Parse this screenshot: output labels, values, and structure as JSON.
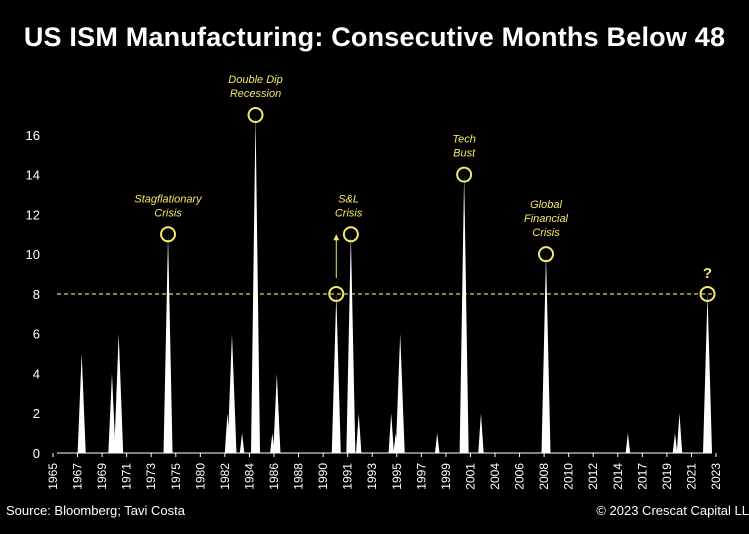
{
  "page": {
    "title": "US ISM Manufacturing: Consecutive Months Below 48",
    "source": "Source: Bloomberg; Tavi Costa",
    "copyright": "© 2023 Crescat Capital LL"
  },
  "colors": {
    "background": "#000000",
    "area": "#ffffff",
    "highlight": "#f2e86b"
  },
  "chart_data": {
    "type": "area",
    "title": "US ISM Manufacturing: Consecutive Months Below 48",
    "xlabel": "",
    "ylabel": "",
    "ylim": [
      0,
      17
    ],
    "xlim": [
      1965,
      2023.4
    ],
    "grid": false,
    "y_ticks": [
      0,
      2,
      4,
      6,
      8,
      10,
      12,
      14,
      16
    ],
    "x_tick_labels": [
      "1965",
      "1967",
      "1969",
      "1971",
      "1973",
      "1975",
      "1980",
      "1982",
      "1984",
      "1986",
      "1988",
      "1990",
      "1991",
      "1993",
      "1995",
      "1997",
      "1999",
      "2001",
      "2004",
      "2006",
      "2008",
      "2010",
      "2012",
      "2014",
      "2017",
      "2019",
      "2021",
      "2023"
    ],
    "reference_line": {
      "y": 8,
      "style": "dashed"
    },
    "spikes": [
      {
        "x": 1967.2,
        "value": 5
      },
      {
        "x": 1969.9,
        "value": 4
      },
      {
        "x": 1970.5,
        "value": 6
      },
      {
        "x": 1974.9,
        "value": 11
      },
      {
        "x": 1980.2,
        "value": 2
      },
      {
        "x": 1980.6,
        "value": 6
      },
      {
        "x": 1981.5,
        "value": 1
      },
      {
        "x": 1982.7,
        "value": 17
      },
      {
        "x": 1984.2,
        "value": 1
      },
      {
        "x": 1984.6,
        "value": 4
      },
      {
        "x": 1989.9,
        "value": 8
      },
      {
        "x": 1991.2,
        "value": 11
      },
      {
        "x": 1991.9,
        "value": 2
      },
      {
        "x": 1994.8,
        "value": 2
      },
      {
        "x": 1995.2,
        "value": 1
      },
      {
        "x": 1995.6,
        "value": 6
      },
      {
        "x": 1998.9,
        "value": 1
      },
      {
        "x": 2001.3,
        "value": 14
      },
      {
        "x": 2002.8,
        "value": 2
      },
      {
        "x": 2008.6,
        "value": 10
      },
      {
        "x": 2015.9,
        "value": 1
      },
      {
        "x": 2020.1,
        "value": 1
      },
      {
        "x": 2020.5,
        "value": 2
      },
      {
        "x": 2023.0,
        "value": 8
      }
    ],
    "annotations": [
      {
        "lines": [
          "Stagflationary",
          "Crisis"
        ],
        "x": 1974.9,
        "value": 11
      },
      {
        "lines": [
          "Double Dip",
          "Recession"
        ],
        "x": 1982.7,
        "value": 17
      },
      {
        "lines": [
          "S&L",
          "Crisis"
        ],
        "x": 1991.0,
        "value": 11
      },
      {
        "lines": [
          "Tech",
          "Bust"
        ],
        "x": 2001.3,
        "value": 14
      },
      {
        "lines": [
          "Global",
          "Financial",
          "Crisis"
        ],
        "x": 2008.6,
        "value": 10
      },
      {
        "lines": [
          "?"
        ],
        "x": 2023.0,
        "value": 8
      }
    ],
    "circled_points": [
      {
        "x": 1974.9,
        "value": 11
      },
      {
        "x": 1982.7,
        "value": 17
      },
      {
        "x": 1989.9,
        "value": 8
      },
      {
        "x": 1991.2,
        "value": 11
      },
      {
        "x": 2001.3,
        "value": 14
      },
      {
        "x": 2008.6,
        "value": 10
      },
      {
        "x": 2023.0,
        "value": 8
      }
    ]
  }
}
